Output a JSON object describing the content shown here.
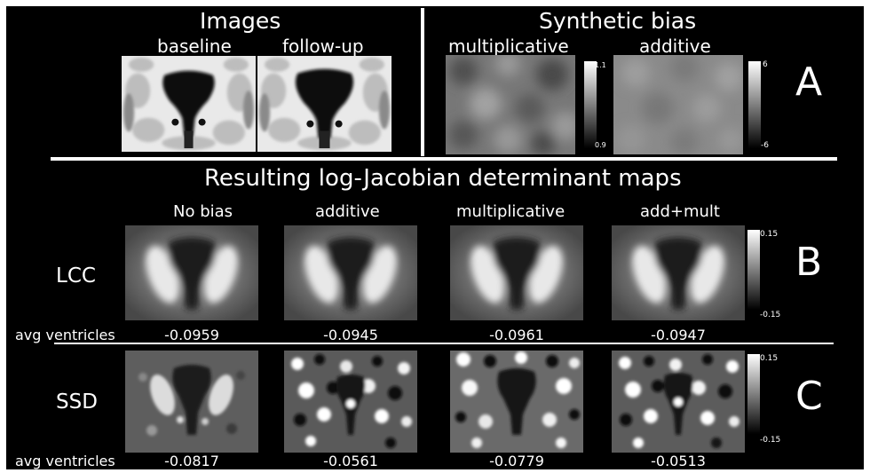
{
  "sectionA": {
    "left_title": "Images",
    "right_title": "Synthetic bias",
    "baseline_label": "baseline",
    "followup_label": "follow-up",
    "multiplicative_label": "multiplicative",
    "additive_label": "additive",
    "mult_cbar_max": "1.1",
    "mult_cbar_min": "0.9",
    "add_cbar_max": "6",
    "add_cbar_min": "-6",
    "letter": "A"
  },
  "maps_title": "Resulting log-Jacobian determinant maps",
  "columns": [
    "No bias",
    "additive",
    "multiplicative",
    "add+mult"
  ],
  "sectionB": {
    "row_label": "LCC",
    "avg_label": "avg ventricles",
    "values": [
      "-0.0959",
      "-0.0945",
      "-0.0961",
      "-0.0947"
    ],
    "cbar_max": "0.15",
    "cbar_min": "-0.15",
    "letter": "B"
  },
  "sectionC": {
    "row_label": "SSD",
    "avg_label": "avg ventricles",
    "values": [
      "-0.0817",
      "-0.0561",
      "-0.0779",
      "-0.0513"
    ],
    "cbar_max": "0.15",
    "cbar_min": "-0.15",
    "letter": "C"
  }
}
